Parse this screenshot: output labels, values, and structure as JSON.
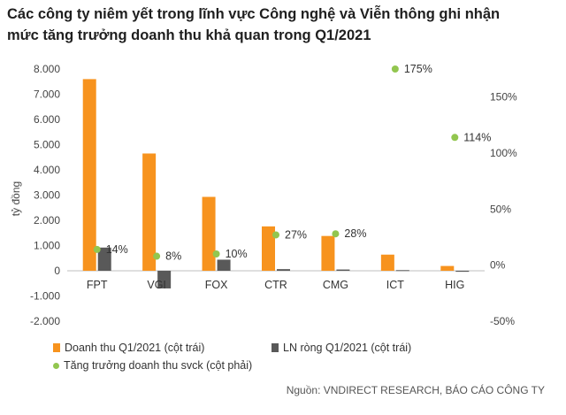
{
  "title_lines": [
    "Các công ty niêm yết trong lĩnh vực Công nghệ và Viễn thông ghi nhận",
    "mức tăng trưởng doanh thu khả quan trong Q1/2021"
  ],
  "source": "Nguồn: VNDIRECT RESEARCH, BÁO CÁO CÔNG TY",
  "colors": {
    "revenue": "#F7931E",
    "profit": "#595959",
    "growth": "#92C64F",
    "axis": "#BFBFBF"
  },
  "chart_data": {
    "type": "bar",
    "title": "Các công ty niêm yết trong lĩnh vực Công nghệ và Viễn thông ghi nhận mức tăng trưởng doanh thu khả quan trong Q1/2021",
    "ylabel": "tỷ đồng",
    "ylim": [
      -2000,
      8000
    ],
    "yticks": [
      -2000,
      -1000,
      0,
      1000,
      2000,
      3000,
      4000,
      5000,
      6000,
      7000,
      8000
    ],
    "ytick_labels": [
      "-2.000",
      "-1.000",
      "0",
      "1.000",
      "2.000",
      "3.000",
      "4.000",
      "5.000",
      "6.000",
      "7.000",
      "8.000"
    ],
    "y2lim": [
      -50,
      175
    ],
    "y2ticks": [
      -50,
      0,
      50,
      100,
      150
    ],
    "y2tick_labels": [
      "-50%",
      "0%",
      "50%",
      "100%",
      "150%"
    ],
    "categories": [
      "FPT",
      "VGI",
      "FOX",
      "CTR",
      "CMG",
      "ICT",
      "HIG"
    ],
    "series": [
      {
        "name": "Doanh thu Q1/2021 (cột trái)",
        "kind": "bar",
        "axis": "left",
        "values": [
          7600,
          4650,
          2930,
          1760,
          1380,
          640,
          190
        ]
      },
      {
        "name": "LN ròng Q1/2021 (cột trái)",
        "kind": "bar",
        "axis": "left",
        "values": [
          920,
          -700,
          440,
          65,
          50,
          25,
          -40
        ]
      },
      {
        "name": "Tăng trưởng doanh thu svck (cột phải)",
        "kind": "scatter",
        "axis": "right",
        "values": [
          14,
          8,
          10,
          27,
          28,
          175,
          114
        ],
        "labels": [
          "14%",
          "8%",
          "10%",
          "27%",
          "28%",
          "175%",
          "114%"
        ]
      }
    ],
    "legend": "bottom-left",
    "grid": false
  }
}
